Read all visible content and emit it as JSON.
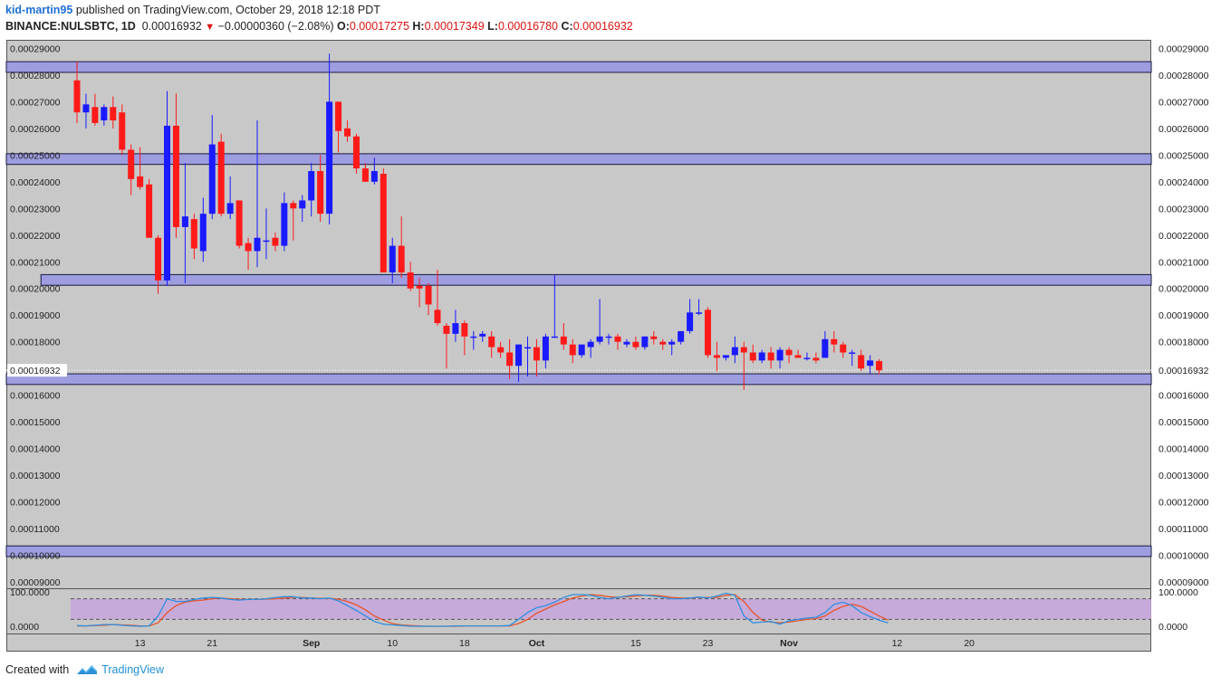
{
  "header": {
    "author": "kid-martin95",
    "published_text": "published on TradingView.com, October 29, 2018 12:18 PDT",
    "symbol": "BINANCE:NULSBTC, 1D",
    "last_price": "0.00016932",
    "change": "−0.00000360 (−2.08%)",
    "open_label": "O:",
    "open": "0.00017275",
    "high_label": "H:",
    "high": "0.00017349",
    "low_label": "L:",
    "low": "0.00016780",
    "close_label": "C:",
    "close": "0.00016932"
  },
  "footer": {
    "created_with": "Created with",
    "brand": "TradingView"
  },
  "colors": {
    "up": "#1a1aff",
    "down": "#ff1a1a",
    "background": "#c8c8c8",
    "zone": "#9d9de0",
    "stoch_k": "#2d8fe0",
    "stoch_d": "#e8542a",
    "stoch_band": "#c6a5dc"
  },
  "chart_data": {
    "type": "candlestick",
    "y_axis": {
      "min": 8.83e-05,
      "max": 0.0002932,
      "ticks": [
        "0.00009000",
        "0.00010000",
        "0.00011000",
        "0.00012000",
        "0.00013000",
        "0.00014000",
        "0.00015000",
        "0.00016000",
        "0.00017000",
        "0.00018000",
        "0.00019000",
        "0.00020000",
        "0.00021000",
        "0.00022000",
        "0.00023000",
        "0.00024000",
        "0.00025000",
        "0.00026000",
        "0.00027000",
        "0.00028000",
        "0.00029000"
      ],
      "last_price_label": "0.00016932"
    },
    "x_axis": {
      "labels": [
        "13",
        "21",
        "Sep",
        "10",
        "18",
        "Oct",
        "15",
        "23",
        "Nov",
        "12",
        "20"
      ],
      "label_day_index": [
        7,
        15,
        26,
        35,
        43,
        51,
        62,
        70,
        79,
        91,
        99
      ]
    },
    "zones": [
      {
        "from_day": 0,
        "low": 0.000281,
        "high": 0.000285
      },
      {
        "from_day": 0,
        "low": 0.0002465,
        "high": 0.0002505
      },
      {
        "from_day": -4,
        "low": 0.0002012,
        "high": 0.0002052
      },
      {
        "from_day": 0,
        "low": 0.000164,
        "high": 0.000168
      },
      {
        "from_day": 0,
        "low": 9.95e-05,
        "high": 0.0001035
      }
    ],
    "candles": [
      {
        "o": 0.000278,
        "h": 0.000285,
        "l": 0.000262,
        "c": 0.000266
      },
      {
        "o": 0.000266,
        "h": 0.000273,
        "l": 0.00026,
        "c": 0.000269
      },
      {
        "o": 0.000268,
        "h": 0.000273,
        "l": 0.000261,
        "c": 0.000262
      },
      {
        "o": 0.000263,
        "h": 0.000269,
        "l": 0.000261,
        "c": 0.000268
      },
      {
        "o": 0.000268,
        "h": 0.000272,
        "l": 0.00026,
        "c": 0.000263
      },
      {
        "o": 0.000266,
        "h": 0.000269,
        "l": 0.00025,
        "c": 0.000252
      },
      {
        "o": 0.000252,
        "h": 0.000254,
        "l": 0.000235,
        "c": 0.000241
      },
      {
        "o": 0.000242,
        "h": 0.000253,
        "l": 0.000237,
        "c": 0.000238
      },
      {
        "o": 0.000239,
        "h": 0.000241,
        "l": 0.000219,
        "c": 0.000219
      },
      {
        "o": 0.000219,
        "h": 0.00022,
        "l": 0.000198,
        "c": 0.000203
      },
      {
        "o": 0.000203,
        "h": 0.000274,
        "l": 0.000201,
        "c": 0.000261
      },
      {
        "o": 0.000261,
        "h": 0.000273,
        "l": 0.000219,
        "c": 0.000223
      },
      {
        "o": 0.000223,
        "h": 0.000247,
        "l": 0.000202,
        "c": 0.000227
      },
      {
        "o": 0.000226,
        "h": 0.000228,
        "l": 0.000211,
        "c": 0.000215
      },
      {
        "o": 0.000214,
        "h": 0.000234,
        "l": 0.00021,
        "c": 0.000228
      },
      {
        "o": 0.000228,
        "h": 0.000265,
        "l": 0.000226,
        "c": 0.000254
      },
      {
        "o": 0.000255,
        "h": 0.000258,
        "l": 0.000227,
        "c": 0.000228
      },
      {
        "o": 0.000228,
        "h": 0.000242,
        "l": 0.000226,
        "c": 0.000232
      },
      {
        "o": 0.000233,
        "h": 0.000233,
        "l": 0.000215,
        "c": 0.000216
      },
      {
        "o": 0.000217,
        "h": 0.000219,
        "l": 0.000207,
        "c": 0.000214
      },
      {
        "o": 0.000214,
        "h": 0.000263,
        "l": 0.000208,
        "c": 0.000219
      },
      {
        "o": 0.000218,
        "h": 0.00023,
        "l": 0.000211,
        "c": 0.000218
      },
      {
        "o": 0.000219,
        "h": 0.000221,
        "l": 0.000214,
        "c": 0.000216
      },
      {
        "o": 0.000216,
        "h": 0.000236,
        "l": 0.000214,
        "c": 0.000232
      },
      {
        "o": 0.000232,
        "h": 0.000233,
        "l": 0.000218,
        "c": 0.00023
      },
      {
        "o": 0.00023,
        "h": 0.000235,
        "l": 0.000225,
        "c": 0.000233
      },
      {
        "o": 0.000233,
        "h": 0.000247,
        "l": 0.000227,
        "c": 0.000244
      },
      {
        "o": 0.000244,
        "h": 0.00025,
        "l": 0.000225,
        "c": 0.000228
      },
      {
        "o": 0.000228,
        "h": 0.000288,
        "l": 0.000224,
        "c": 0.00027
      },
      {
        "o": 0.00027,
        "h": 0.00027,
        "l": 0.000251,
        "c": 0.000259
      },
      {
        "o": 0.00026,
        "h": 0.000263,
        "l": 0.000255,
        "c": 0.000257
      },
      {
        "o": 0.000257,
        "h": 0.000258,
        "l": 0.000243,
        "c": 0.000245
      },
      {
        "o": 0.000245,
        "h": 0.000247,
        "l": 0.00024,
        "c": 0.00024
      },
      {
        "o": 0.00024,
        "h": 0.000249,
        "l": 0.000239,
        "c": 0.000244
      },
      {
        "o": 0.000243,
        "h": 0.000245,
        "l": 0.000206,
        "c": 0.000206
      },
      {
        "o": 0.000206,
        "h": 0.000219,
        "l": 0.000202,
        "c": 0.000216
      },
      {
        "o": 0.000216,
        "h": 0.000227,
        "l": 0.000204,
        "c": 0.000206
      },
      {
        "o": 0.000206,
        "h": 0.00021,
        "l": 0.000199,
        "c": 0.0002
      },
      {
        "o": 0.000201,
        "h": 0.000204,
        "l": 0.000193,
        "c": 0.0002
      },
      {
        "o": 0.000201,
        "h": 0.000202,
        "l": 0.00019,
        "c": 0.000194
      },
      {
        "o": 0.000192,
        "h": 0.000207,
        "l": 0.000186,
        "c": 0.000187
      },
      {
        "o": 0.000186,
        "h": 0.000187,
        "l": 0.00017,
        "c": 0.000183
      },
      {
        "o": 0.000183,
        "h": 0.000192,
        "l": 0.00018,
        "c": 0.000187
      },
      {
        "o": 0.000187,
        "h": 0.000188,
        "l": 0.000175,
        "c": 0.000182
      },
      {
        "o": 0.000182,
        "h": 0.000184,
        "l": 0.000177,
        "c": 0.000182
      },
      {
        "o": 0.000182,
        "h": 0.000184,
        "l": 0.00018,
        "c": 0.000183
      },
      {
        "o": 0.000182,
        "h": 0.000184,
        "l": 0.000174,
        "c": 0.000178
      },
      {
        "o": 0.000178,
        "h": 0.00018,
        "l": 0.000174,
        "c": 0.000176
      },
      {
        "o": 0.000176,
        "h": 0.000181,
        "l": 0.000166,
        "c": 0.000171
      },
      {
        "o": 0.000171,
        "h": 0.000179,
        "l": 0.000165,
        "c": 0.000179
      },
      {
        "o": 0.000178,
        "h": 0.000182,
        "l": 0.000167,
        "c": 0.000178
      },
      {
        "o": 0.000178,
        "h": 0.000181,
        "l": 0.000167,
        "c": 0.000173
      },
      {
        "o": 0.000173,
        "h": 0.000183,
        "l": 0.00017,
        "c": 0.000182
      },
      {
        "o": 0.000182,
        "h": 0.000205,
        "l": 0.000182,
        "c": 0.000182
      },
      {
        "o": 0.000182,
        "h": 0.000187,
        "l": 0.000177,
        "c": 0.000179
      },
      {
        "o": 0.000179,
        "h": 0.000181,
        "l": 0.000172,
        "c": 0.000175
      },
      {
        "o": 0.000175,
        "h": 0.000179,
        "l": 0.000174,
        "c": 0.000179
      },
      {
        "o": 0.000178,
        "h": 0.000181,
        "l": 0.000174,
        "c": 0.00018
      },
      {
        "o": 0.00018,
        "h": 0.000196,
        "l": 0.000179,
        "c": 0.000182
      },
      {
        "o": 0.000182,
        "h": 0.000183,
        "l": 0.000179,
        "c": 0.000182
      },
      {
        "o": 0.000182,
        "h": 0.000183,
        "l": 0.000177,
        "c": 0.00018
      },
      {
        "o": 0.000179,
        "h": 0.000181,
        "l": 0.000178,
        "c": 0.00018
      },
      {
        "o": 0.00018,
        "h": 0.000182,
        "l": 0.000177,
        "c": 0.000178
      },
      {
        "o": 0.000178,
        "h": 0.000182,
        "l": 0.000177,
        "c": 0.000182
      },
      {
        "o": 0.000182,
        "h": 0.000184,
        "l": 0.000179,
        "c": 0.000181
      },
      {
        "o": 0.00018,
        "h": 0.000181,
        "l": 0.000177,
        "c": 0.000179
      },
      {
        "o": 0.000179,
        "h": 0.000181,
        "l": 0.000175,
        "c": 0.00018
      },
      {
        "o": 0.00018,
        "h": 0.000184,
        "l": 0.000179,
        "c": 0.000184
      },
      {
        "o": 0.000184,
        "h": 0.000196,
        "l": 0.000183,
        "c": 0.000191
      },
      {
        "o": 0.000191,
        "h": 0.000196,
        "l": 0.00019,
        "c": 0.000191
      },
      {
        "o": 0.000192,
        "h": 0.000193,
        "l": 0.000174,
        "c": 0.000175
      },
      {
        "o": 0.000175,
        "h": 0.00018,
        "l": 0.000169,
        "c": 0.000174
      },
      {
        "o": 0.000174,
        "h": 0.000175,
        "l": 0.000173,
        "c": 0.000175
      },
      {
        "o": 0.000175,
        "h": 0.000182,
        "l": 0.000172,
        "c": 0.000178
      },
      {
        "o": 0.000178,
        "h": 0.00018,
        "l": 0.000162,
        "c": 0.000176
      },
      {
        "o": 0.000176,
        "h": 0.000179,
        "l": 0.000172,
        "c": 0.000173
      },
      {
        "o": 0.000173,
        "h": 0.000177,
        "l": 0.000172,
        "c": 0.000176
      },
      {
        "o": 0.000176,
        "h": 0.000178,
        "l": 0.00017,
        "c": 0.000173
      },
      {
        "o": 0.000173,
        "h": 0.000178,
        "l": 0.00017,
        "c": 0.000177
      },
      {
        "o": 0.000177,
        "h": 0.000178,
        "l": 0.000172,
        "c": 0.000175
      },
      {
        "o": 0.000175,
        "h": 0.000177,
        "l": 0.000174,
        "c": 0.000174
      },
      {
        "o": 0.000174,
        "h": 0.000176,
        "l": 0.000173,
        "c": 0.000174
      },
      {
        "o": 0.000174,
        "h": 0.000176,
        "l": 0.000172,
        "c": 0.000173
      },
      {
        "o": 0.000174,
        "h": 0.000184,
        "l": 0.000174,
        "c": 0.000181
      },
      {
        "o": 0.000181,
        "h": 0.000184,
        "l": 0.000176,
        "c": 0.000179
      },
      {
        "o": 0.000179,
        "h": 0.00018,
        "l": 0.000174,
        "c": 0.000176
      },
      {
        "o": 0.000176,
        "h": 0.000177,
        "l": 0.000171,
        "c": 0.000176
      },
      {
        "o": 0.000175,
        "h": 0.000177,
        "l": 0.000169,
        "c": 0.00017
      },
      {
        "o": 0.000171,
        "h": 0.000175,
        "l": 0.000168,
        "c": 0.000173
      },
      {
        "o": 0.0001728,
        "h": 0.0001735,
        "l": 0.0001678,
        "c": 0.0001693
      }
    ],
    "stochastic": {
      "levels": [
        "100.0000",
        "0.0000"
      ],
      "upper_band": 80,
      "lower_band": 20,
      "k_name": "%K",
      "d_name": "%D",
      "k": [
        2,
        1,
        3,
        5,
        5,
        3,
        1,
        0,
        1,
        30,
        80,
        72,
        72,
        78,
        82,
        84,
        82,
        78,
        76,
        78,
        78,
        80,
        84,
        86,
        86,
        82,
        82,
        80,
        82,
        74,
        60,
        46,
        30,
        14,
        6,
        4,
        2,
        0,
        0,
        0,
        0,
        0,
        1,
        1,
        1,
        1,
        1,
        1,
        2,
        20,
        40,
        54,
        60,
        70,
        84,
        92,
        92,
        90,
        84,
        80,
        84,
        88,
        92,
        90,
        88,
        84,
        80,
        80,
        82,
        85,
        82,
        88,
        96,
        90,
        30,
        10,
        12,
        14,
        6,
        16,
        20,
        24,
        26,
        40,
        64,
        70,
        60,
        40,
        28,
        18,
        10
      ],
      "d": [
        1,
        1,
        2,
        3,
        5,
        4,
        3,
        1,
        1,
        10,
        40,
        60,
        70,
        74,
        76,
        80,
        82,
        80,
        78,
        78,
        78,
        79,
        80,
        82,
        84,
        84,
        82,
        81,
        81,
        79,
        72,
        62,
        48,
        30,
        18,
        8,
        4,
        2,
        1,
        0,
        0,
        0,
        0,
        1,
        1,
        1,
        1,
        1,
        1,
        8,
        20,
        38,
        50,
        62,
        72,
        82,
        88,
        92,
        90,
        86,
        84,
        86,
        88,
        90,
        90,
        88,
        84,
        82,
        82,
        84,
        84,
        84,
        90,
        92,
        72,
        40,
        18,
        12,
        10,
        12,
        16,
        20,
        22,
        30,
        46,
        58,
        64,
        58,
        44,
        30,
        18
      ]
    }
  }
}
